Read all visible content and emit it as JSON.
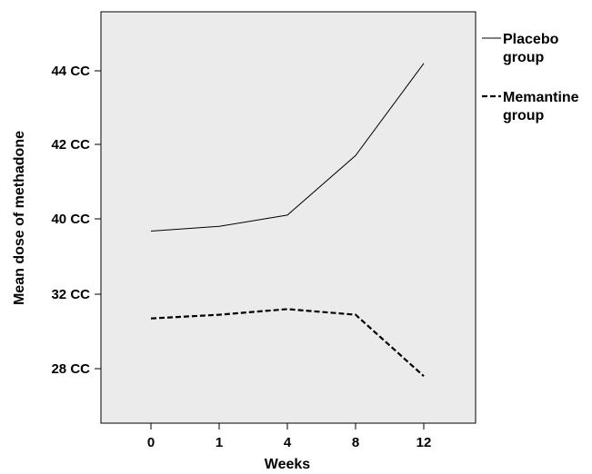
{
  "chart_data": {
    "type": "line",
    "title": "",
    "xlabel": "Weeks",
    "ylabel": "Mean dose of methadone",
    "categories": [
      "0",
      "1",
      "4",
      "8",
      "12"
    ],
    "y_ticks": [
      {
        "label": "28 CC",
        "value": 28
      },
      {
        "label": "32 CC",
        "value": 32
      },
      {
        "label": "40 CC",
        "value": 40
      },
      {
        "label": "42 CC",
        "value": 42
      },
      {
        "label": "44 CC",
        "value": 44
      }
    ],
    "ylim": [
      26,
      46
    ],
    "grid": false,
    "legend_position": "right",
    "background_color": "#ebebeb",
    "series": [
      {
        "name": "Placebo group",
        "legend_lines": [
          "Placebo",
          "group"
        ],
        "style": "solid",
        "color": "#000000",
        "values": [
          38.7,
          39.2,
          40.1,
          41.7,
          44.2
        ]
      },
      {
        "name": "Memantine group",
        "legend_lines": [
          "Memantine",
          "group"
        ],
        "style": "dashed",
        "color": "#000000",
        "values": [
          30.7,
          30.9,
          31.2,
          30.9,
          27.6
        ]
      }
    ]
  }
}
